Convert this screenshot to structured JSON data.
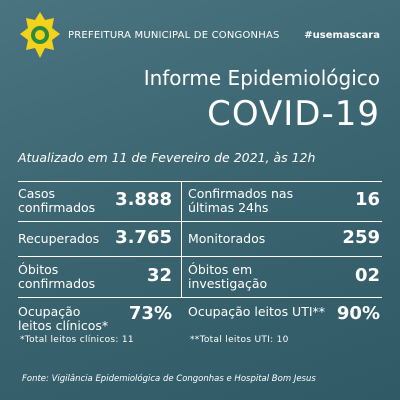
{
  "header": {
    "title": "PREFEITURA MUNICIPAL DE CONGONHAS",
    "hashtag": "#usemascara"
  },
  "title": {
    "line1": "Informe Epidemiológico",
    "line2": "COVID-19"
  },
  "updated": "Atualizado em 11 de Fevereiro de 2021, às 12h",
  "rows": [
    [
      {
        "label": "Casos confirmados",
        "value": "3.888"
      },
      {
        "label": "Confirmados nas últimas 24hs",
        "value": "16"
      }
    ],
    [
      {
        "label": "Recuperados",
        "value": "3.765"
      },
      {
        "label": "Monitorados",
        "value": "259"
      }
    ],
    [
      {
        "label": "Óbitos confirmados",
        "value": "32"
      },
      {
        "label": "Óbitos em investigação",
        "value": "02"
      }
    ],
    [
      {
        "label": "Ocupação leitos clínicos*",
        "value": "73%",
        "note": "*Total leitos clínicos: 11"
      },
      {
        "label": "Ocupação leitos UTI**",
        "value": "90%",
        "note": "**Total leitos UTI: 10"
      }
    ]
  ],
  "footer": "Fonte: Vigilância Epidemiológica de Congonhas e Hospital Bom Jesus"
}
